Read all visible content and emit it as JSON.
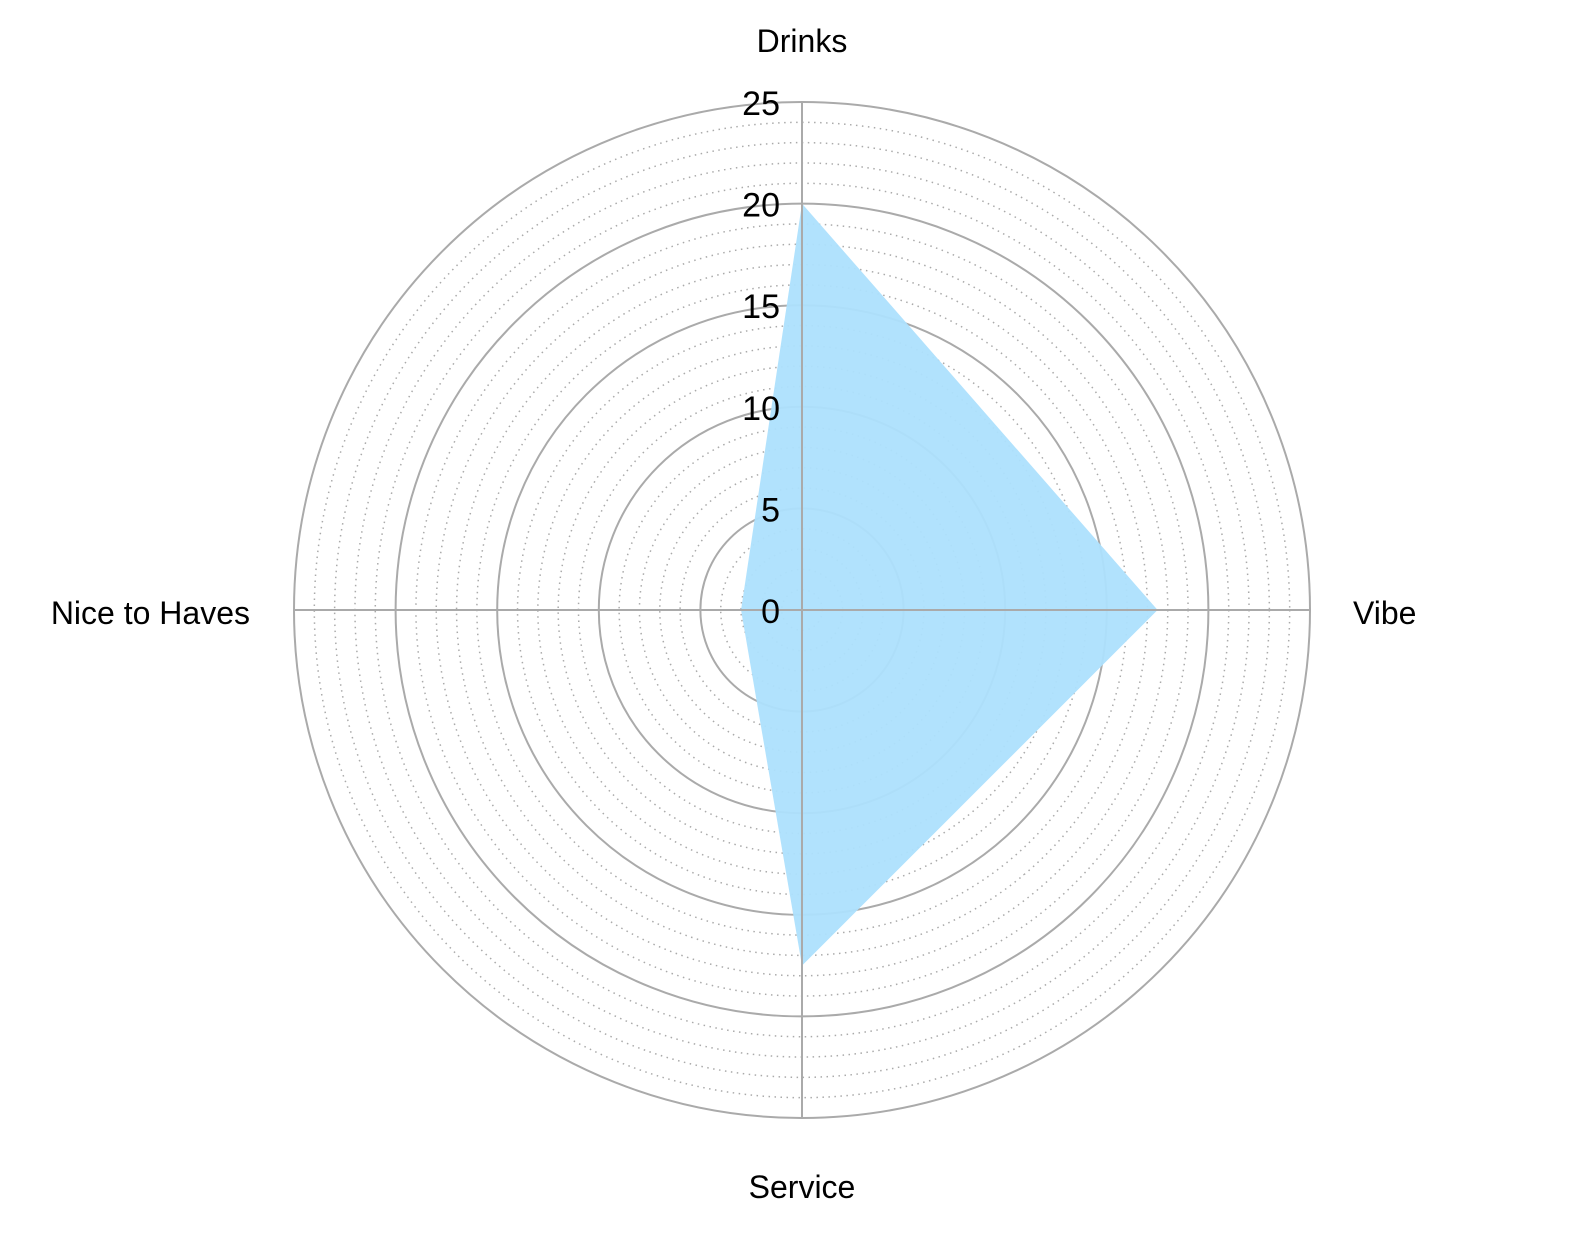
{
  "chart_data": {
    "type": "radar",
    "categories": [
      "Drinks",
      "Vibe",
      "Service",
      "Nice to Haves"
    ],
    "series": [
      {
        "values": [
          20,
          17.5,
          17.5,
          3
        ],
        "color": "#ade0fd"
      }
    ],
    "rlim": [
      0,
      25
    ],
    "major_ticks": [
      0,
      5,
      10,
      15,
      20,
      25
    ],
    "minor_tick_step": 1,
    "tick_labels": [
      "0",
      "5",
      "10",
      "15",
      "20",
      "25"
    ],
    "grid": true,
    "grid_color": "#aaaaaa",
    "legend": "none"
  }
}
